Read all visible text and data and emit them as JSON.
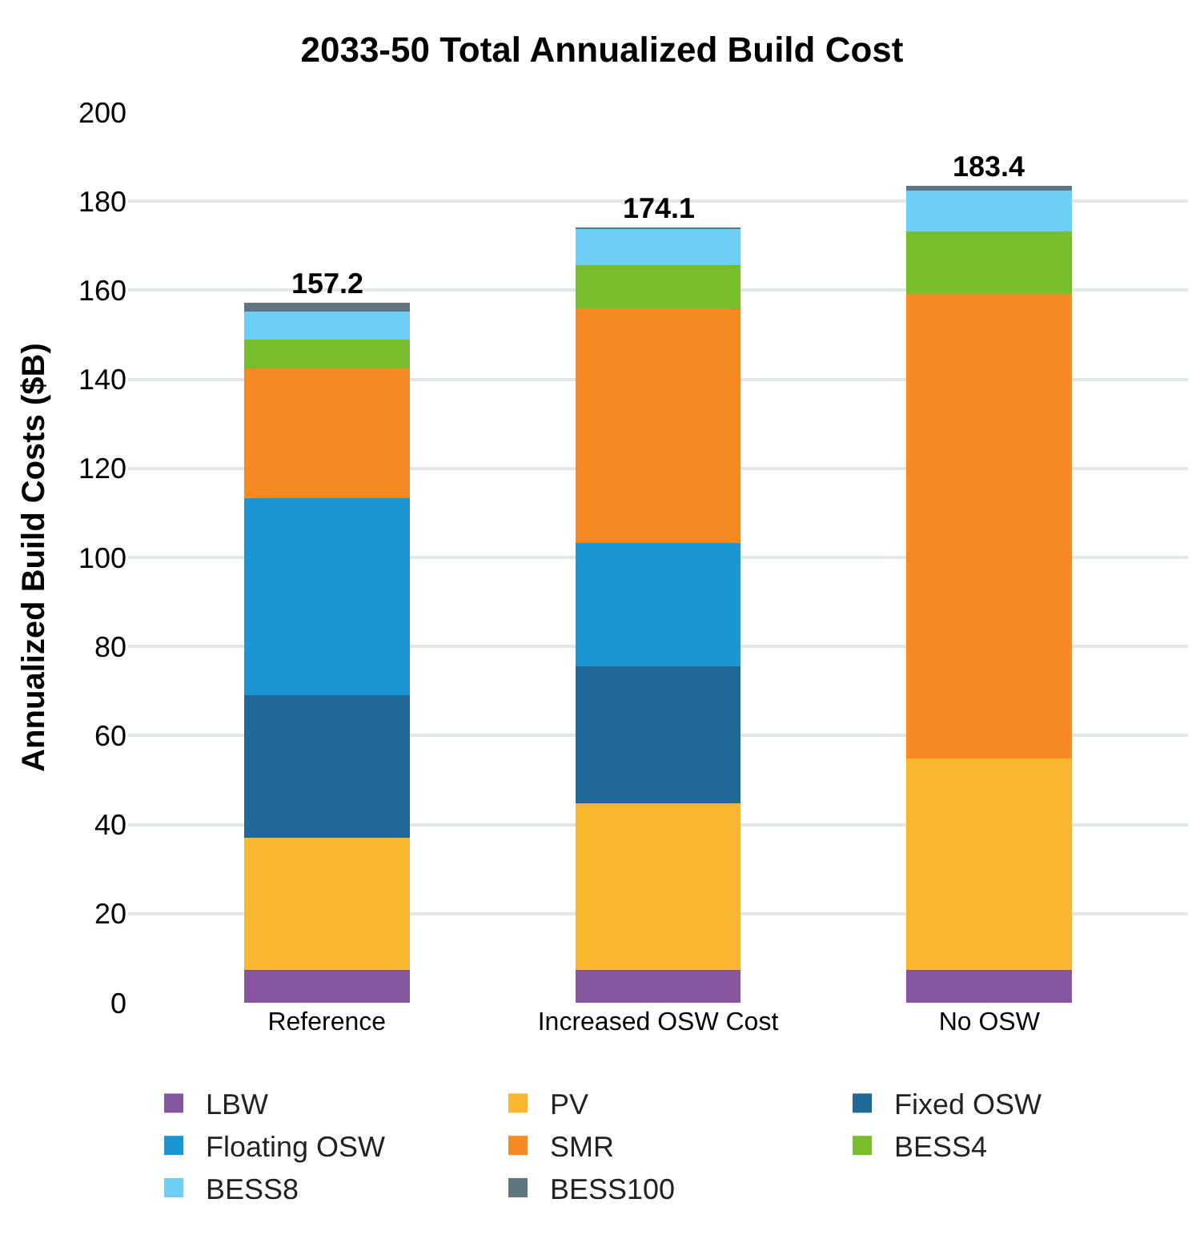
{
  "chart_data": {
    "type": "bar",
    "title": "2033-50 Total Annualized Build Cost",
    "ylabel": "Annualized Build Costs ($B)",
    "categories": [
      "Reference",
      "Increased OSW Cost",
      "No OSW"
    ],
    "stacked": true,
    "series": [
      {
        "name": "LBW",
        "color": "#8655a0",
        "values": [
          7.3,
          7.3,
          7.3
        ]
      },
      {
        "name": "PV",
        "color": "#f9b730",
        "values": [
          29.7,
          37.4,
          47.5
        ]
      },
      {
        "name": "Fixed OSW",
        "color": "#1f6a99",
        "values": [
          32.1,
          30.9,
          0
        ]
      },
      {
        "name": "Floating OSW",
        "color": "#1b96d3",
        "values": [
          44.3,
          27.6,
          0
        ]
      },
      {
        "name": "SMR",
        "color": "#f58a22",
        "values": [
          29.0,
          52.7,
          104.3
        ]
      },
      {
        "name": "BESS4",
        "color": "#78bd2c",
        "values": [
          6.6,
          9.7,
          14.1
        ]
      },
      {
        "name": "BESS8",
        "color": "#6dcff6",
        "values": [
          6.3,
          8.2,
          9.1
        ]
      },
      {
        "name": "BESS100",
        "color": "#5f7681",
        "values": [
          1.9,
          0.3,
          1.1
        ]
      }
    ],
    "totals": [
      "157.2",
      "174.1",
      "183.4"
    ],
    "ylim": [
      0,
      200
    ],
    "yticks": [
      0,
      20,
      40,
      60,
      80,
      100,
      120,
      140,
      160,
      180,
      200
    ],
    "grid": "y",
    "legend": "bottom"
  }
}
